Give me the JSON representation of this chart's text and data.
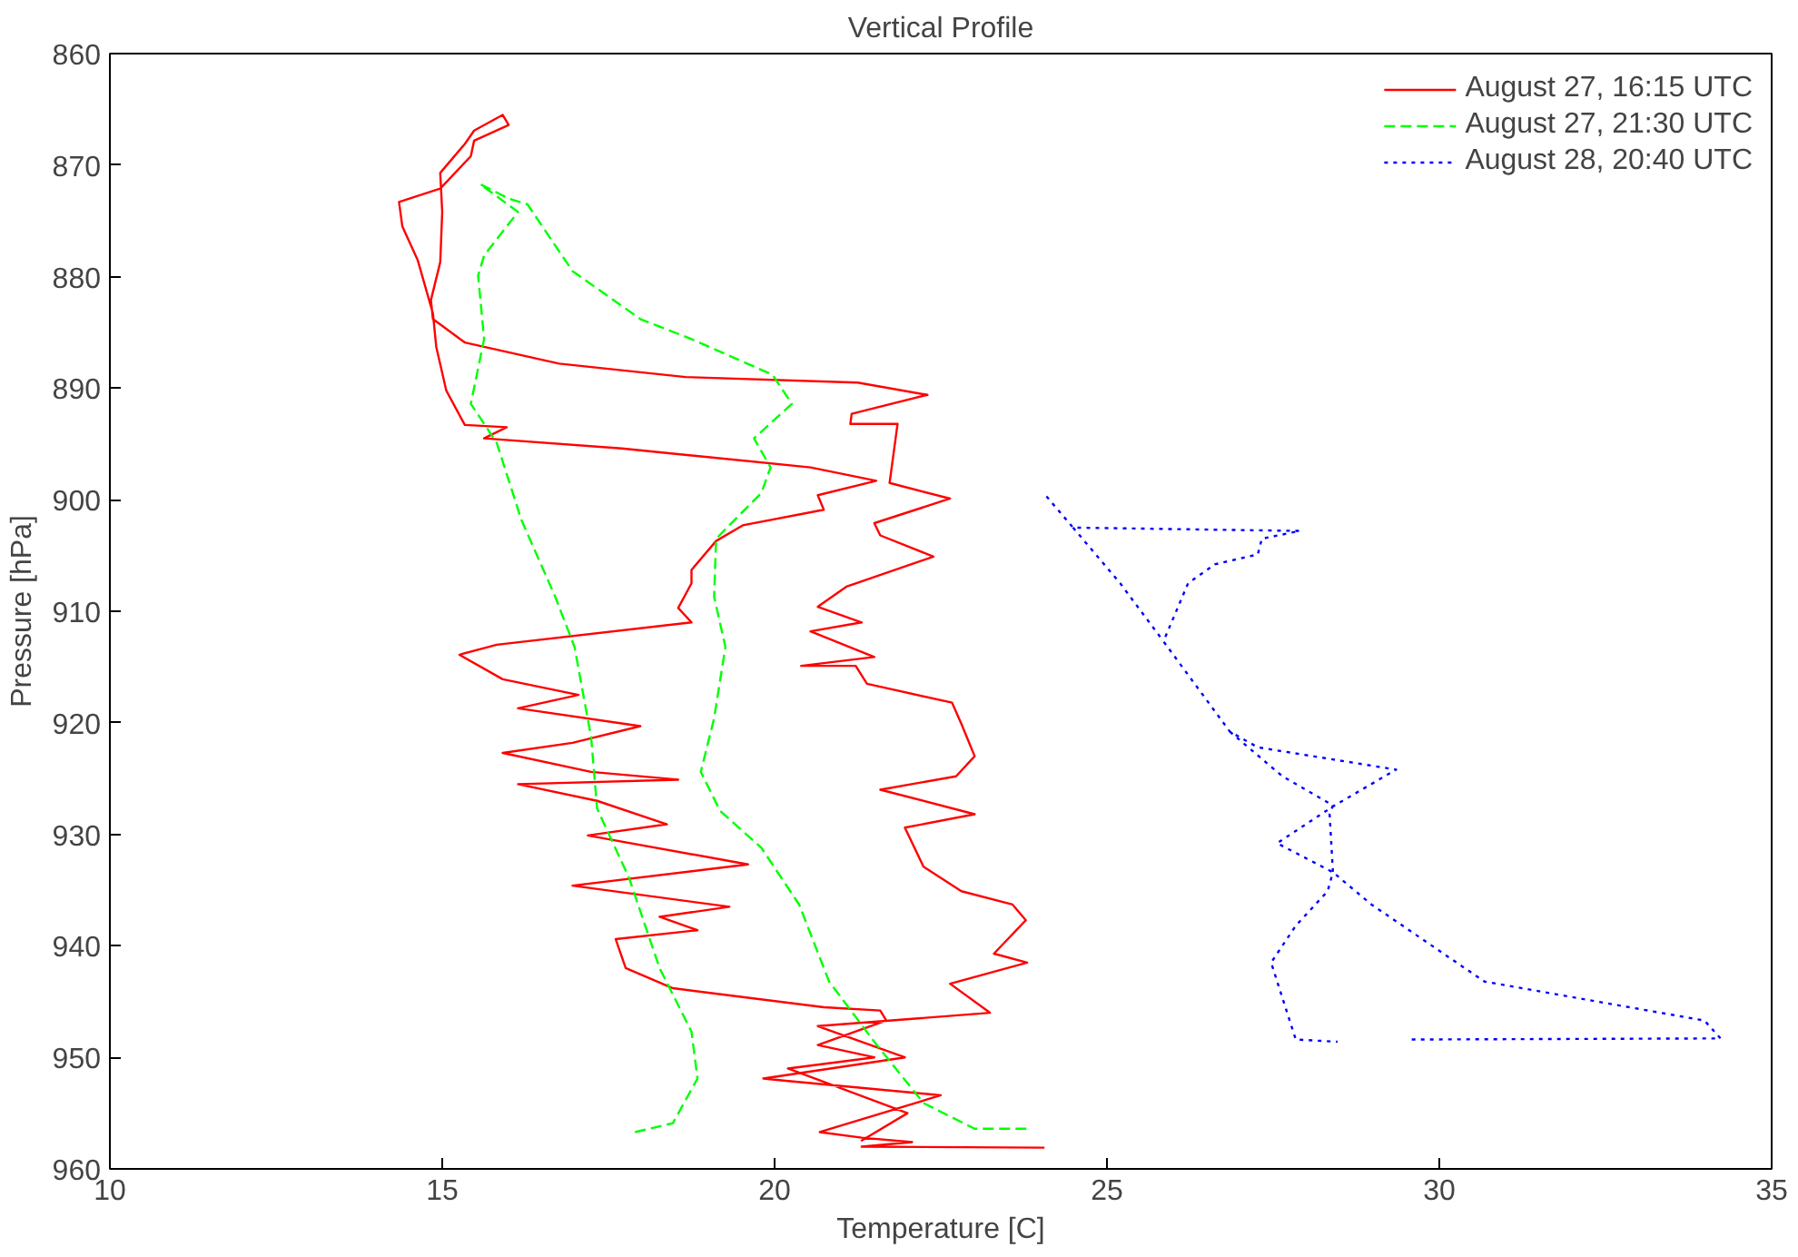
{
  "chart_data": {
    "type": "line",
    "title": "Vertical Profile",
    "xlabel": "Temperature [C]",
    "ylabel": "Pressure [hPa]",
    "xlim": [
      10,
      35
    ],
    "xticks": [
      10,
      15,
      20,
      25,
      30,
      35
    ],
    "ylim": [
      960,
      860
    ],
    "yticks": [
      860,
      870,
      880,
      890,
      900,
      910,
      920,
      930,
      940,
      950,
      960
    ],
    "grid": false,
    "legend": "top right",
    "marker": "none",
    "series": [
      {
        "name": "August 27, 16:15 UTC",
        "color": "#ff0000",
        "line_style": "solid",
        "x": [
          24.06,
          21.31,
          22.07,
          21.31,
          20.68,
          22.5,
          20.17,
          19.83,
          21.96,
          20.65,
          23.24,
          22.64,
          23.8,
          23.3,
          23.78,
          23.58,
          22.81,
          22.24,
          21.96,
          23.01,
          21.59,
          22.73,
          23.01,
          22.81,
          22.67,
          21.39,
          21.22,
          20.4,
          21.5,
          20.54,
          21.31,
          20.65,
          21.08,
          21.22,
          22.39,
          21.59,
          21.5,
          22.64,
          21.73,
          21.85,
          21.14,
          21.16,
          22.3,
          21.25,
          18.66,
          16.76,
          15.34,
          14.86,
          14.83,
          14.97,
          15.0,
          14.97,
          15.34,
          15.48,
          15.91,
          16.0,
          15.48,
          15.43,
          14.97,
          14.35,
          14.4,
          14.63,
          14.86,
          14.91,
          15.06,
          15.34,
          15.97,
          15.63,
          17.7,
          20.54,
          21.53,
          20.65,
          20.74,
          19.52,
          19.12,
          18.75,
          18.75,
          18.55,
          18.75,
          15.82,
          15.26,
          15.91,
          17.05,
          16.14,
          17.98,
          16.96,
          15.91,
          17.24,
          18.55,
          16.14,
          17.33,
          18.38,
          17.19,
          19.6,
          16.96,
          19.32,
          18.27,
          18.84,
          17.61,
          17.76,
          18.47,
          20.74,
          21.59,
          21.68,
          20.65,
          21.5,
          20.2,
          22.0,
          21.3
        ],
        "values": [
          958.1,
          958.0,
          957.6,
          957.2,
          956.7,
          953.4,
          952.1,
          951.9,
          950.0,
          947.2,
          946.0,
          943.4,
          941.5,
          940.7,
          937.7,
          936.3,
          935.1,
          932.9,
          929.4,
          928.2,
          926.0,
          924.8,
          923.0,
          920.1,
          918.2,
          916.5,
          914.9,
          914.9,
          914.1,
          911.8,
          911.0,
          909.6,
          907.8,
          907.5,
          905.1,
          903.2,
          902.1,
          899.9,
          898.5,
          893.2,
          893.2,
          892.3,
          890.6,
          889.5,
          889.0,
          887.8,
          885.9,
          883.8,
          882.1,
          878.7,
          874.2,
          870.7,
          868.1,
          866.9,
          865.5,
          866.4,
          867.8,
          869.2,
          872.1,
          873.3,
          875.5,
          878.5,
          883.3,
          886.3,
          890.2,
          893.3,
          893.5,
          894.5,
          895.4,
          897.1,
          898.3,
          899.6,
          900.9,
          902.3,
          903.7,
          906.3,
          907.5,
          909.7,
          911.0,
          913.0,
          913.9,
          916.1,
          917.5,
          918.7,
          920.3,
          921.8,
          922.7,
          924.4,
          925.1,
          925.5,
          927.0,
          929.1,
          930.1,
          932.7,
          934.6,
          936.5,
          937.4,
          938.6,
          939.4,
          942.0,
          943.8,
          945.5,
          945.8,
          946.7,
          948.9,
          950.0,
          951.0,
          955.0,
          957.5
        ]
      },
      {
        "name": "August 27, 21:30 UTC",
        "color": "#00ff00",
        "line_style": "dashed",
        "x": [
          17.9,
          18.47,
          18.84,
          18.75,
          18.27,
          17.81,
          17.33,
          17.24,
          16.99,
          16.7,
          16.19,
          15.82,
          15.43,
          15.63,
          15.54,
          15.63,
          16.14,
          15.57,
          16.0,
          16.28,
          16.96,
          17.98,
          18.75,
          19.97,
          20.26,
          19.69,
          19.94,
          19.8,
          19.12,
          19.09,
          19.26,
          19.09,
          18.89,
          19.18,
          19.8,
          20.37,
          20.82,
          21.5,
          22.24,
          23.01,
          23.81
        ],
        "values": [
          956.7,
          955.9,
          951.9,
          947.7,
          942.0,
          933.9,
          927.7,
          921.3,
          913.2,
          908.7,
          901.8,
          894.9,
          891.4,
          885.6,
          879.9,
          878.1,
          874.2,
          871.7,
          873.0,
          873.5,
          879.5,
          883.8,
          885.6,
          888.8,
          891.4,
          894.5,
          897.1,
          899.4,
          903.5,
          908.7,
          913.2,
          919.6,
          924.4,
          927.9,
          931.2,
          936.3,
          943.2,
          948.6,
          954.1,
          956.4,
          956.4
        ]
      },
      {
        "name": "August 28, 20:40 UTC",
        "color": "#0000ff",
        "line_style": "dotted",
        "x": [
          24.09,
          24.49,
          27.9,
          27.33,
          27.27,
          26.62,
          26.22,
          25.85,
          26.85,
          27.27,
          29.35,
          28.4,
          27.56,
          28.4,
          28.98,
          30.68,
          33.99,
          34.23,
          29.55,
          null,
          24.49,
          25.2,
          25.85,
          null,
          26.85,
          27.64,
          28.4,
          28.35,
          28.4,
          28.32,
          27.84,
          27.47,
          27.84,
          28.47
        ],
        "values": [
          899.7,
          902.5,
          902.8,
          903.5,
          904.9,
          905.8,
          907.5,
          912.7,
          920.8,
          922.2,
          924.2,
          927.5,
          930.8,
          933.4,
          936.3,
          943.2,
          946.7,
          948.3,
          948.4,
          null,
          902.5,
          907.5,
          912.7,
          null,
          920.8,
          924.8,
          927.4,
          928.2,
          933.4,
          935.1,
          938.2,
          941.5,
          948.4,
          948.6
        ]
      }
    ]
  }
}
